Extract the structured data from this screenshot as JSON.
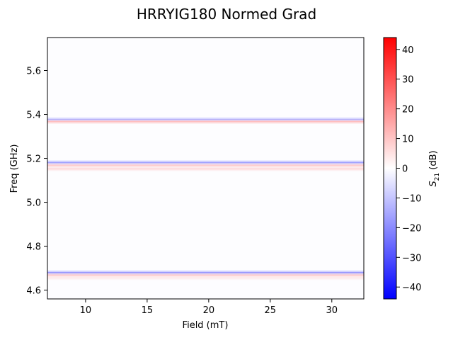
{
  "chart_data": {
    "type": "heatmap",
    "title": "HRRYIG180 Normed Grad",
    "xlabel": "Field (mT)",
    "ylabel": "Freq (GHz)",
    "xlim": [
      6.9,
      32.6
    ],
    "ylim": [
      4.56,
      5.75
    ],
    "x_ticks": [
      10,
      15,
      20,
      25,
      30
    ],
    "y_ticks": [
      4.6,
      4.8,
      5.0,
      5.2,
      5.4,
      5.6
    ],
    "colorbar": {
      "label": "S21 (dB)",
      "label_base": "S",
      "label_sub": "21",
      "label_unit": " (dB)",
      "vmin": -44,
      "vmax": 44,
      "ticks": [
        -40,
        -30,
        -20,
        -10,
        0,
        10,
        20,
        30,
        40
      ],
      "colormap": "bwr",
      "colors": {
        "low": "#0000ff",
        "mid": "#ffffff",
        "high": "#ff0000"
      }
    },
    "bands": [
      {
        "freq": 5.377,
        "width": 0.006,
        "value": -15
      },
      {
        "freq": 5.367,
        "width": 0.006,
        "value": 12
      },
      {
        "freq": 5.181,
        "width": 0.006,
        "value": -18
      },
      {
        "freq": 5.168,
        "width": 0.006,
        "value": 10
      },
      {
        "freq": 5.152,
        "width": 0.006,
        "value": 8
      },
      {
        "freq": 4.68,
        "width": 0.006,
        "value": -20
      },
      {
        "freq": 4.668,
        "width": 0.006,
        "value": 10
      },
      {
        "freq": 4.655,
        "width": 0.006,
        "value": 4
      }
    ],
    "background_level": -2
  }
}
